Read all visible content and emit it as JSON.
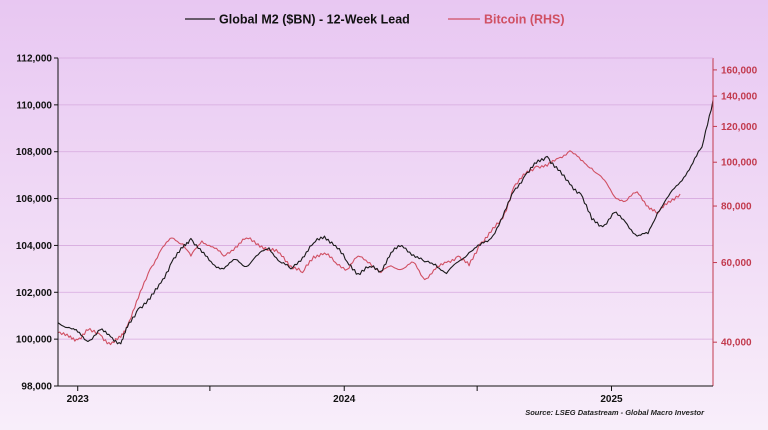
{
  "colors": {
    "m2": "#1a1a1a",
    "btc": "#d05063",
    "grid": "#d6a9de",
    "axis_left": "#111111",
    "axis_right": "#c23a4e"
  },
  "chart_data": {
    "type": "line",
    "title": "",
    "xlabel": "",
    "ylabel": "",
    "x_tick_labels": [
      "2023",
      "2024",
      "2025"
    ],
    "x_tick_dates": [
      "2023-01-01",
      "2024-01-01",
      "2025-01-01"
    ],
    "xlim": [
      "2022-12-05",
      "2025-05-20"
    ],
    "y_left": {
      "lim": [
        98000,
        112000
      ],
      "ticks": [
        98000,
        100000,
        102000,
        104000,
        106000,
        108000,
        110000,
        112000
      ],
      "tick_labels": [
        "98,000",
        "100,000",
        "102,000",
        "104,000",
        "106,000",
        "108,000",
        "110,000",
        "112,000"
      ]
    },
    "y_right": {
      "scale": "log",
      "lim": [
        32000,
        170000
      ],
      "ticks": [
        40000,
        60000,
        80000,
        100000,
        120000,
        140000,
        160000
      ],
      "tick_labels": [
        "40,000",
        "60,000",
        "80,000",
        "100,000",
        "120,000",
        "140,000",
        "160,000"
      ]
    },
    "grid": true,
    "legend_position": "top-center",
    "series": [
      {
        "name": "Global M2 ($BN) - 12-Week Lead",
        "axis": "left",
        "points": [
          [
            "2022-12-05",
            100700
          ],
          [
            "2022-12-20",
            100500
          ],
          [
            "2023-01-01",
            100300
          ],
          [
            "2023-01-15",
            99900
          ],
          [
            "2023-02-01",
            100400
          ],
          [
            "2023-02-15",
            100100
          ],
          [
            "2023-03-01",
            99800
          ],
          [
            "2023-03-10",
            100500
          ],
          [
            "2023-03-25",
            101300
          ],
          [
            "2023-04-10",
            101700
          ],
          [
            "2023-04-25",
            102400
          ],
          [
            "2023-05-10",
            103300
          ],
          [
            "2023-05-25",
            103900
          ],
          [
            "2023-06-05",
            104300
          ],
          [
            "2023-06-20",
            103700
          ],
          [
            "2023-07-05",
            103200
          ],
          [
            "2023-07-20",
            103000
          ],
          [
            "2023-08-05",
            103400
          ],
          [
            "2023-08-20",
            103100
          ],
          [
            "2023-09-05",
            103600
          ],
          [
            "2023-09-20",
            103900
          ],
          [
            "2023-10-05",
            103300
          ],
          [
            "2023-10-20",
            103000
          ],
          [
            "2023-11-05",
            103500
          ],
          [
            "2023-11-20",
            104100
          ],
          [
            "2023-12-05",
            104400
          ],
          [
            "2023-12-20",
            104000
          ],
          [
            "2024-01-05",
            103300
          ],
          [
            "2024-01-20",
            102800
          ],
          [
            "2024-02-05",
            103100
          ],
          [
            "2024-02-20",
            102900
          ],
          [
            "2024-03-05",
            103700
          ],
          [
            "2024-03-20",
            104000
          ],
          [
            "2024-04-05",
            103600
          ],
          [
            "2024-04-20",
            103300
          ],
          [
            "2024-05-05",
            103200
          ],
          [
            "2024-05-20",
            102800
          ],
          [
            "2024-06-05",
            103300
          ],
          [
            "2024-06-20",
            103700
          ],
          [
            "2024-07-05",
            104000
          ],
          [
            "2024-07-20",
            104300
          ],
          [
            "2024-08-05",
            105200
          ],
          [
            "2024-08-20",
            106300
          ],
          [
            "2024-09-05",
            107000
          ],
          [
            "2024-09-20",
            107500
          ],
          [
            "2024-10-05",
            107800
          ],
          [
            "2024-10-20",
            107200
          ],
          [
            "2024-11-05",
            106600
          ],
          [
            "2024-11-20",
            106200
          ],
          [
            "2024-12-05",
            105100
          ],
          [
            "2024-12-20",
            104800
          ],
          [
            "2025-01-05",
            105400
          ],
          [
            "2025-01-20",
            105000
          ],
          [
            "2025-02-05",
            104400
          ],
          [
            "2025-02-20",
            104500
          ],
          [
            "2025-03-05",
            105400
          ],
          [
            "2025-03-20",
            106100
          ],
          [
            "2025-04-05",
            106700
          ],
          [
            "2025-04-20",
            107400
          ],
          [
            "2025-05-05",
            108200
          ],
          [
            "2025-05-20",
            110200
          ]
        ]
      },
      {
        "name": "Bitcoin (RHS)",
        "axis": "right",
        "points": [
          [
            "2022-12-05",
            42000
          ],
          [
            "2022-12-20",
            41000
          ],
          [
            "2023-01-01",
            40500
          ],
          [
            "2023-01-15",
            42500
          ],
          [
            "2023-02-01",
            41500
          ],
          [
            "2023-02-15",
            39500
          ],
          [
            "2023-03-01",
            41000
          ],
          [
            "2023-03-10",
            43500
          ],
          [
            "2023-03-25",
            50000
          ],
          [
            "2023-04-10",
            58000
          ],
          [
            "2023-04-25",
            64000
          ],
          [
            "2023-05-10",
            68000
          ],
          [
            "2023-05-25",
            66000
          ],
          [
            "2023-06-05",
            62000
          ],
          [
            "2023-06-20",
            67000
          ],
          [
            "2023-07-05",
            65000
          ],
          [
            "2023-07-20",
            62000
          ],
          [
            "2023-08-05",
            65000
          ],
          [
            "2023-08-20",
            68000
          ],
          [
            "2023-09-05",
            66000
          ],
          [
            "2023-09-20",
            64000
          ],
          [
            "2023-10-05",
            63000
          ],
          [
            "2023-10-20",
            59000
          ],
          [
            "2023-11-05",
            57000
          ],
          [
            "2023-11-20",
            62000
          ],
          [
            "2023-12-05",
            63000
          ],
          [
            "2023-12-20",
            60000
          ],
          [
            "2024-01-05",
            58000
          ],
          [
            "2024-01-20",
            62000
          ],
          [
            "2024-02-05",
            60000
          ],
          [
            "2024-02-20",
            57000
          ],
          [
            "2024-03-05",
            59000
          ],
          [
            "2024-03-20",
            58000
          ],
          [
            "2024-04-05",
            60000
          ],
          [
            "2024-04-20",
            55000
          ],
          [
            "2024-05-05",
            58000
          ],
          [
            "2024-05-20",
            60000
          ],
          [
            "2024-06-05",
            62000
          ],
          [
            "2024-06-20",
            59000
          ],
          [
            "2024-07-05",
            66000
          ],
          [
            "2024-07-20",
            70000
          ],
          [
            "2024-08-05",
            75000
          ],
          [
            "2024-08-20",
            88000
          ],
          [
            "2024-09-05",
            94000
          ],
          [
            "2024-09-20",
            98000
          ],
          [
            "2024-10-05",
            98000
          ],
          [
            "2024-10-20",
            102000
          ],
          [
            "2024-11-05",
            106000
          ],
          [
            "2024-11-20",
            101000
          ],
          [
            "2024-12-05",
            97000
          ],
          [
            "2024-12-20",
            92000
          ],
          [
            "2025-01-05",
            84000
          ],
          [
            "2025-01-20",
            82000
          ],
          [
            "2025-02-05",
            86000
          ],
          [
            "2025-02-20",
            80000
          ],
          [
            "2025-03-05",
            77000
          ],
          [
            "2025-03-20",
            82000
          ],
          [
            "2025-04-05",
            85000
          ]
        ]
      }
    ]
  },
  "source_text": "Source: LSEG Datastream - Global Macro Investor"
}
